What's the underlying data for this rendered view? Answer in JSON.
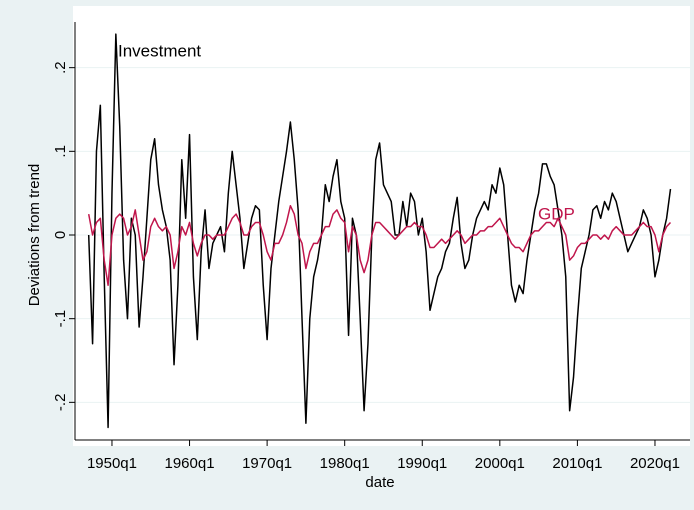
{
  "chart_data": {
    "type": "line",
    "annotations": [
      "Investment",
      "GDP"
    ],
    "ylabel": "Deviations from trend",
    "xlabel": "date",
    "categories": [
      "1947q1",
      "1947q3",
      "1948q1",
      "1948q3",
      "1949q1",
      "1949q3",
      "1950q1",
      "1950q3",
      "1951q1",
      "1951q3",
      "1952q1",
      "1952q3",
      "1953q1",
      "1953q3",
      "1954q1",
      "1954q3",
      "1955q1",
      "1955q3",
      "1956q1",
      "1956q3",
      "1957q1",
      "1957q3",
      "1958q1",
      "1958q3",
      "1959q1",
      "1959q3",
      "1960q1",
      "1960q3",
      "1961q1",
      "1961q3",
      "1962q1",
      "1962q3",
      "1963q1",
      "1963q3",
      "1964q1",
      "1964q3",
      "1965q1",
      "1965q3",
      "1966q1",
      "1966q3",
      "1967q1",
      "1967q3",
      "1968q1",
      "1968q3",
      "1969q1",
      "1969q3",
      "1970q1",
      "1970q3",
      "1971q1",
      "1971q3",
      "1972q1",
      "1972q3",
      "1973q1",
      "1973q3",
      "1974q1",
      "1974q3",
      "1975q1",
      "1975q3",
      "1976q1",
      "1976q3",
      "1977q1",
      "1977q3",
      "1978q1",
      "1978q3",
      "1979q1",
      "1979q3",
      "1980q1",
      "1980q3",
      "1981q1",
      "1981q3",
      "1982q1",
      "1982q3",
      "1983q1",
      "1983q3",
      "1984q1",
      "1984q3",
      "1985q1",
      "1985q3",
      "1986q1",
      "1986q3",
      "1987q1",
      "1987q3",
      "1988q1",
      "1988q3",
      "1989q1",
      "1989q3",
      "1990q1",
      "1990q3",
      "1991q1",
      "1991q3",
      "1992q1",
      "1992q3",
      "1993q1",
      "1993q3",
      "1994q1",
      "1994q3",
      "1995q1",
      "1995q3",
      "1996q1",
      "1996q3",
      "1997q1",
      "1997q3",
      "1998q1",
      "1998q3",
      "1999q1",
      "1999q3",
      "2000q1",
      "2000q3",
      "2001q1",
      "2001q3",
      "2002q1",
      "2002q3",
      "2003q1",
      "2003q3",
      "2004q1",
      "2004q3",
      "2005q1",
      "2005q3",
      "2006q1",
      "2006q3",
      "2007q1",
      "2007q3",
      "2008q1",
      "2008q3",
      "2009q1",
      "2009q3",
      "2010q1",
      "2010q3",
      "2011q1",
      "2011q3",
      "2012q1",
      "2012q3",
      "2013q1",
      "2013q3",
      "2014q1",
      "2014q3",
      "2015q1",
      "2015q3",
      "2016q1",
      "2016q3",
      "2017q1",
      "2017q3",
      "2018q1",
      "2018q3",
      "2019q1",
      "2019q3",
      "2020q1",
      "2020q3",
      "2021q1",
      "2021q3",
      "2022q1"
    ],
    "series": [
      {
        "color": "#000000",
        "values": [
          0.0,
          -0.13,
          0.1,
          0.155,
          -0.05,
          -0.23,
          0.05,
          0.24,
          0.13,
          -0.03,
          -0.1,
          0.02,
          0.0,
          -0.11,
          -0.05,
          0.02,
          0.09,
          0.115,
          0.06,
          0.03,
          0.01,
          -0.03,
          -0.155,
          -0.06,
          0.09,
          0.02,
          0.12,
          -0.05,
          -0.125,
          -0.02,
          0.03,
          -0.04,
          -0.01,
          0.0,
          0.01,
          -0.02,
          0.05,
          0.1,
          0.06,
          0.02,
          -0.04,
          -0.01,
          0.02,
          0.035,
          0.03,
          -0.06,
          -0.125,
          -0.04,
          0.0,
          0.04,
          0.07,
          0.1,
          0.135,
          0.09,
          0.03,
          -0.1,
          -0.225,
          -0.1,
          -0.05,
          -0.03,
          0.0,
          0.06,
          0.04,
          0.07,
          0.09,
          0.04,
          0.02,
          -0.12,
          0.02,
          0.0,
          -0.1,
          -0.21,
          -0.13,
          0.0,
          0.09,
          0.11,
          0.06,
          0.05,
          0.04,
          0.0,
          0.0,
          0.04,
          0.01,
          0.05,
          0.04,
          0.0,
          0.02,
          -0.02,
          -0.09,
          -0.07,
          -0.05,
          -0.04,
          -0.02,
          -0.01,
          0.02,
          0.045,
          -0.01,
          -0.04,
          -0.03,
          0.0,
          0.02,
          0.03,
          0.04,
          0.03,
          0.06,
          0.05,
          0.08,
          0.06,
          0.0,
          -0.06,
          -0.08,
          -0.06,
          -0.07,
          -0.03,
          0.0,
          0.03,
          0.05,
          0.085,
          0.085,
          0.07,
          0.06,
          0.03,
          0.0,
          -0.05,
          -0.21,
          -0.17,
          -0.1,
          -0.04,
          -0.02,
          0.0,
          0.03,
          0.035,
          0.02,
          0.04,
          0.03,
          0.05,
          0.04,
          0.02,
          0.0,
          -0.02,
          -0.01,
          0.0,
          0.01,
          0.03,
          0.02,
          0.0,
          -0.05,
          -0.03,
          0.0,
          0.02,
          0.055
        ]
      },
      {
        "color": "#c0164c",
        "values": [
          0.025,
          0.0,
          0.015,
          0.02,
          -0.03,
          -0.06,
          0.0,
          0.02,
          0.025,
          0.02,
          0.0,
          0.01,
          0.03,
          0.0,
          -0.03,
          -0.02,
          0.01,
          0.02,
          0.01,
          0.005,
          0.01,
          0.0,
          -0.04,
          -0.02,
          0.01,
          0.0,
          0.015,
          -0.01,
          -0.025,
          -0.01,
          0.0,
          0.0,
          -0.005,
          0.0,
          0.0,
          0.0,
          0.01,
          0.02,
          0.025,
          0.015,
          0.0,
          0.0,
          0.01,
          0.015,
          0.015,
          0.0,
          -0.02,
          -0.03,
          -0.01,
          -0.01,
          0.0,
          0.015,
          0.035,
          0.025,
          0.0,
          -0.01,
          -0.04,
          -0.02,
          -0.01,
          -0.01,
          0.0,
          0.01,
          0.01,
          0.025,
          0.03,
          0.02,
          0.015,
          -0.02,
          0.01,
          0.0,
          -0.03,
          -0.045,
          -0.03,
          0.0,
          0.015,
          0.015,
          0.01,
          0.005,
          0.0,
          -0.005,
          0.0,
          0.005,
          0.01,
          0.01,
          0.015,
          0.01,
          0.01,
          0.0,
          -0.015,
          -0.015,
          -0.01,
          -0.005,
          -0.01,
          -0.005,
          0.0,
          0.005,
          0.0,
          -0.01,
          -0.005,
          0.0,
          0.0,
          0.005,
          0.005,
          0.01,
          0.01,
          0.015,
          0.02,
          0.01,
          0.0,
          -0.01,
          -0.015,
          -0.015,
          -0.02,
          -0.01,
          0.0,
          0.005,
          0.005,
          0.01,
          0.015,
          0.015,
          0.01,
          0.02,
          0.01,
          0.0,
          -0.03,
          -0.025,
          -0.015,
          -0.01,
          -0.01,
          -0.005,
          0.0,
          0.0,
          -0.005,
          0.0,
          -0.005,
          0.005,
          0.01,
          0.005,
          0.0,
          0.0,
          0.0,
          0.005,
          0.01,
          0.015,
          0.01,
          0.01,
          0.0,
          -0.02,
          0.0,
          0.01,
          0.015
        ]
      }
    ],
    "xticks": [
      "1950q1",
      "1960q1",
      "1970q1",
      "1980q1",
      "1990q1",
      "2000q1",
      "2010q1",
      "2020q1"
    ],
    "ylim": [
      -0.245,
      0.245
    ],
    "yticks": [
      {
        "value": -0.2,
        "label": "-.2"
      },
      {
        "value": -0.1,
        "label": "-.1"
      },
      0,
      {
        "value": 0.1,
        "label": ".1"
      },
      {
        "value": 0.2,
        "label": ".2"
      }
    ],
    "grid": true
  }
}
